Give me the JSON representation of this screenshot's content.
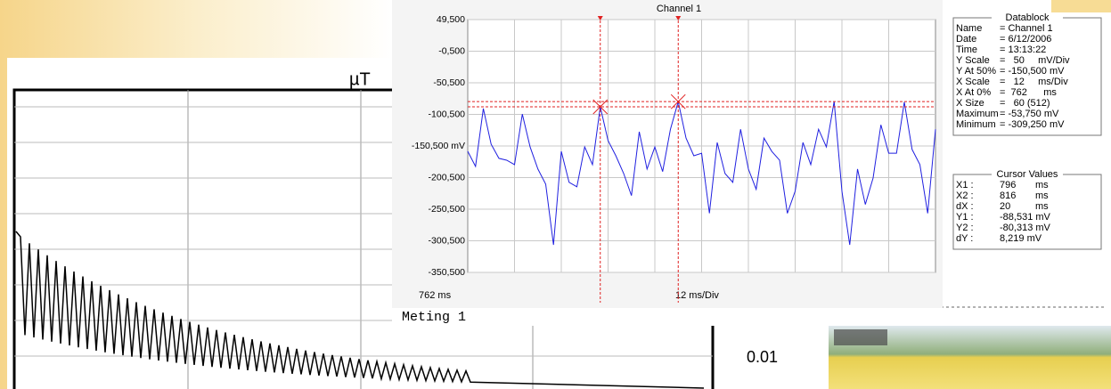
{
  "chart_data": {
    "type": "line",
    "title": "Channel 1",
    "x": [
      762,
      764,
      766,
      768,
      770,
      772,
      774,
      776,
      778,
      780,
      782,
      784,
      786,
      788,
      790,
      792,
      794,
      796,
      798,
      800,
      802,
      804,
      806,
      808,
      810,
      812,
      814,
      816,
      818,
      820,
      822,
      824,
      826,
      828,
      830,
      832,
      834,
      836,
      838,
      840,
      842,
      844,
      846,
      848,
      850,
      852,
      854,
      856,
      858,
      860,
      862,
      864,
      866,
      868,
      870,
      872,
      874,
      876,
      878,
      880,
      882
    ],
    "series": [
      {
        "name": "Channel 1",
        "color": "#2020e0",
        "values": [
          -158.9,
          -182.8,
          -91.3,
          -147.6,
          -170.1,
          -173,
          -180,
          -100,
          -152,
          -187,
          -211,
          -307,
          -159,
          -208,
          -215,
          -152,
          -180,
          -88.5,
          -142,
          -166,
          -194,
          -229,
          -128,
          -187,
          -152,
          -191,
          -124,
          -80.3,
          -138,
          -166,
          -162,
          -257,
          -145,
          -194,
          -208,
          -124,
          -187,
          -219,
          -138,
          -159,
          -173,
          -257,
          -222,
          -145,
          -180,
          -124,
          -152,
          -80,
          -222,
          -307,
          -187,
          -243,
          -201,
          -117,
          -162,
          -162,
          -81,
          -156,
          -180,
          -257,
          -124
        ]
      }
    ],
    "xlim": [
      762,
      882
    ],
    "xgrid": [
      774,
      786,
      798,
      810,
      822,
      834,
      846,
      858,
      870
    ],
    "ylim": [
      -350.5,
      49.5
    ],
    "yticks": [
      {
        "value": 49.5,
        "label": "49,500"
      },
      {
        "value": -0.5,
        "label": "-0,500"
      },
      {
        "value": -50.5,
        "label": "-50,500"
      },
      {
        "value": -100.5,
        "label": "-100,500"
      },
      {
        "value": -150.5,
        "label": "-150,500 mV"
      },
      {
        "value": -200.5,
        "label": "-200,500"
      },
      {
        "value": -250.5,
        "label": "-250,500"
      },
      {
        "value": -300.5,
        "label": "-300,500"
      },
      {
        "value": -350.5,
        "label": "-350,500"
      }
    ],
    "grid": true,
    "cursors": [
      {
        "x": 796,
        "y": -88.531
      },
      {
        "x": 816,
        "y": -80.313
      }
    ],
    "cursor_color": "#e02020",
    "x_start_label": "762 ms",
    "x_scale_label": "12 ms/Div"
  },
  "datablock": {
    "title": "Datablock",
    "rows": [
      [
        "Name",
        "= Channel 1"
      ],
      [
        "Date",
        "= 6/12/2006"
      ],
      [
        "Time",
        "= 13:13:22"
      ],
      [
        "Y Scale",
        "=   50     mV/Div"
      ],
      [
        "Y At 50%",
        "= -150,500 mV"
      ],
      [
        "X Scale",
        "=   12     ms/Div"
      ],
      [
        "X At 0%",
        "=  762      ms"
      ],
      [
        "X Size",
        "=   60 (512)"
      ],
      [
        "Maximum",
        "= -53,750 mV"
      ],
      [
        "Minimum",
        "= -309,250 mV"
      ]
    ]
  },
  "cursor_values": {
    "title": "Cursor Values",
    "rows": [
      [
        "X1 :",
        "796",
        "ms"
      ],
      [
        "X2 :",
        "816",
        "ms"
      ],
      [
        "dX :",
        "20",
        "ms"
      ],
      [
        "Y1 :",
        "-88,531 mV",
        ""
      ],
      [
        "Y2 :",
        "-80,313 mV",
        ""
      ],
      [
        "dY :",
        "8,219 mV",
        ""
      ]
    ]
  },
  "background": {
    "unit_label": "µT",
    "scale_label": "0.01",
    "caption": "Meting 1"
  }
}
